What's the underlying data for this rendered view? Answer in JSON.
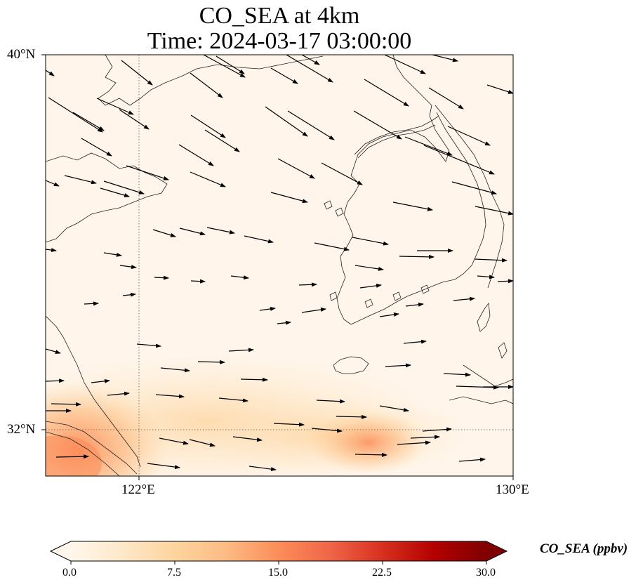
{
  "title": {
    "line1": "CO_SEA at 4km",
    "line2": "Time: 2024-03-17 03:00:00"
  },
  "map": {
    "type": "heatmap",
    "variable": "CO_SEA",
    "lon_range": [
      118.7,
      130.0
    ],
    "lat_range": [
      30.4,
      40.0
    ],
    "x_ticks": [
      {
        "value": 122,
        "label": "122°E"
      },
      {
        "value": 130,
        "label": "130°E"
      }
    ],
    "y_ticks": [
      {
        "value": 40,
        "label": "40°N"
      },
      {
        "value": 32,
        "label": "32°N"
      }
    ],
    "gridlines": "dotted at 122°E and 32°N",
    "coastlines": true,
    "wind_vectors": true,
    "colormap": "OrRd",
    "background_color": "#fff7ec",
    "max_value_in_view_ppbv": 12,
    "high_concentration_regions": [
      {
        "area": "southwest corner near Shanghai coast",
        "approx_ppbv": 11
      },
      {
        "area": "East China Sea south of Jeju",
        "approx_ppbv": 10
      },
      {
        "area": "band along 32°N–33°N",
        "approx_ppbv": 5
      }
    ],
    "prevailing_wind": "northwesterly in north, westerly in south"
  },
  "colorbar": {
    "label": "CO_SEA (ppbv)",
    "min": 0.0,
    "max": 30.0,
    "extend": "both",
    "ticks": [
      "0.0",
      "7.5",
      "15.0",
      "22.5",
      "30.0"
    ],
    "colors": [
      "#fff7ec",
      "#fee8c8",
      "#fdd49e",
      "#fdbb84",
      "#fc8d59",
      "#ef6548",
      "#d7301f",
      "#b30000",
      "#7f0000"
    ]
  }
}
